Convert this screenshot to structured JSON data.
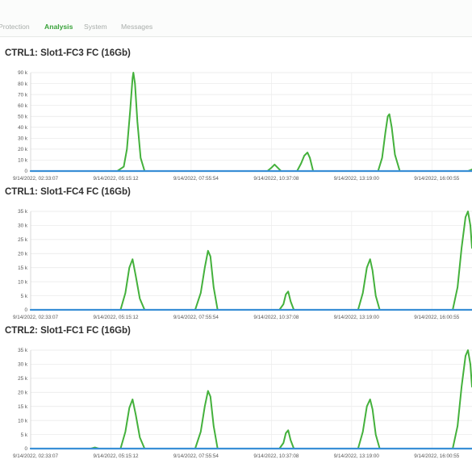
{
  "tabs": [
    {
      "label": "Protection",
      "active": false
    },
    {
      "label": "Analysis",
      "active": true
    },
    {
      "label": "System",
      "active": false
    },
    {
      "label": "Messages",
      "active": false
    }
  ],
  "colors": {
    "accent": "#39a23a",
    "traffic_line": "#44b13c",
    "baseline": "#3a8fd6"
  },
  "chart_data": [
    {
      "type": "line",
      "title": "CTRL1: Slot1-FC3 FC (16Gb)",
      "ylim": [
        0,
        90000
      ],
      "yticks": [
        0,
        10000,
        20000,
        30000,
        40000,
        50000,
        60000,
        70000,
        80000,
        90000
      ],
      "ytick_labels": [
        "0",
        "10 k",
        "20 k",
        "30 k",
        "40 k",
        "50 k",
        "60 k",
        "70 k",
        "80 k",
        "90 k"
      ],
      "xlim": [
        0,
        5.5
      ],
      "x_tick_positions": [
        0,
        1,
        2,
        3,
        4,
        5
      ],
      "x_tick_labels": [
        "9/14/2022, 02:33:07",
        "9/14/2022, 05:15:12",
        "9/14/2022, 07:55:54",
        "9/14/2022, 10:37:08",
        "9/14/2022, 13:19:00",
        "9/14/2022, 16:00:55"
      ],
      "series": [
        {
          "values": [
            [
              0,
              0
            ],
            [
              1.08,
              0
            ],
            [
              1.16,
              4000
            ],
            [
              1.2,
              20000
            ],
            [
              1.24,
              55000
            ],
            [
              1.27,
              85000
            ],
            [
              1.28,
              90000
            ],
            [
              1.3,
              80000
            ],
            [
              1.33,
              45000
            ],
            [
              1.37,
              12000
            ],
            [
              1.42,
              0
            ],
            [
              2.95,
              0
            ],
            [
              3.0,
              3000
            ],
            [
              3.04,
              6000
            ],
            [
              3.08,
              3000
            ],
            [
              3.12,
              0
            ],
            [
              3.32,
              0
            ],
            [
              3.37,
              7000
            ],
            [
              3.41,
              14000
            ],
            [
              3.45,
              17000
            ],
            [
              3.48,
              12000
            ],
            [
              3.52,
              0
            ],
            [
              4.33,
              0
            ],
            [
              4.38,
              12000
            ],
            [
              4.42,
              35000
            ],
            [
              4.45,
              50000
            ],
            [
              4.47,
              52000
            ],
            [
              4.5,
              40000
            ],
            [
              4.54,
              15000
            ],
            [
              4.6,
              0
            ],
            [
              5.45,
              0
            ],
            [
              5.5,
              1500
            ]
          ]
        },
        {
          "values": [
            [
              0,
              0
            ],
            [
              5.5,
              0
            ]
          ]
        }
      ]
    },
    {
      "type": "line",
      "title": "CTRL1: Slot1-FC4 FC (16Gb)",
      "ylim": [
        0,
        35000
      ],
      "yticks": [
        0,
        5000,
        10000,
        15000,
        20000,
        25000,
        30000,
        35000
      ],
      "ytick_labels": [
        "0",
        "5 k",
        "10 k",
        "15 k",
        "20 k",
        "25 k",
        "30 k",
        "35 k"
      ],
      "xlim": [
        0,
        5.5
      ],
      "x_tick_positions": [
        0,
        1,
        2,
        3,
        4,
        5
      ],
      "x_tick_labels": [
        "9/14/2022, 02:33:07",
        "9/14/2022, 05:15:12",
        "9/14/2022, 07:55:54",
        "9/14/2022, 10:37:08",
        "9/14/2022, 13:19:00",
        "9/14/2022, 16:00:55"
      ],
      "series": [
        {
          "values": [
            [
              0,
              0
            ],
            [
              1.12,
              0
            ],
            [
              1.18,
              6000
            ],
            [
              1.23,
              15000
            ],
            [
              1.27,
              18000
            ],
            [
              1.31,
              12000
            ],
            [
              1.36,
              4000
            ],
            [
              1.42,
              0
            ],
            [
              2.05,
              0
            ],
            [
              2.12,
              6000
            ],
            [
              2.17,
              15000
            ],
            [
              2.21,
              21000
            ],
            [
              2.24,
              19000
            ],
            [
              2.28,
              8000
            ],
            [
              2.33,
              0
            ],
            [
              3.1,
              0
            ],
            [
              3.15,
              2000
            ],
            [
              3.18,
              5500
            ],
            [
              3.21,
              6500
            ],
            [
              3.24,
              3000
            ],
            [
              3.28,
              0
            ],
            [
              4.08,
              0
            ],
            [
              4.14,
              6000
            ],
            [
              4.19,
              15000
            ],
            [
              4.23,
              18000
            ],
            [
              4.26,
              14000
            ],
            [
              4.3,
              5000
            ],
            [
              4.35,
              0
            ],
            [
              5.26,
              0
            ],
            [
              5.32,
              8000
            ],
            [
              5.37,
              22000
            ],
            [
              5.42,
              33000
            ],
            [
              5.45,
              35000
            ],
            [
              5.48,
              30000
            ],
            [
              5.5,
              22000
            ]
          ]
        },
        {
          "values": [
            [
              0,
              0
            ],
            [
              5.5,
              0
            ]
          ]
        }
      ]
    },
    {
      "type": "line",
      "title": "CTRL2: Slot1-FC1 FC (16Gb)",
      "ylim": [
        0,
        35000
      ],
      "yticks": [
        0,
        5000,
        10000,
        15000,
        20000,
        25000,
        30000,
        35000
      ],
      "ytick_labels": [
        "0",
        "5 k",
        "10 k",
        "15 k",
        "20 k",
        "25 k",
        "30 k",
        "35 k"
      ],
      "xlim": [
        0,
        5.5
      ],
      "x_tick_positions": [
        0,
        1,
        2,
        3,
        4,
        5
      ],
      "x_tick_labels": [
        "9/14/2022, 02:33:07",
        "9/14/2022, 05:15:12",
        "9/14/2022, 07:55:54",
        "9/14/2022, 10:37:08",
        "9/14/2022, 13:19:00",
        "9/14/2022, 16:00:55"
      ],
      "series": [
        {
          "values": [
            [
              0,
              0
            ],
            [
              0.75,
              0
            ],
            [
              0.8,
              400
            ],
            [
              0.85,
              0
            ],
            [
              1.12,
              0
            ],
            [
              1.18,
              6000
            ],
            [
              1.23,
              14500
            ],
            [
              1.27,
              17500
            ],
            [
              1.31,
              12000
            ],
            [
              1.36,
              4000
            ],
            [
              1.42,
              0
            ],
            [
              2.05,
              0
            ],
            [
              2.12,
              6000
            ],
            [
              2.17,
              15000
            ],
            [
              2.21,
              20500
            ],
            [
              2.24,
              18500
            ],
            [
              2.28,
              8000
            ],
            [
              2.33,
              0
            ],
            [
              3.1,
              0
            ],
            [
              3.15,
              2000
            ],
            [
              3.18,
              5500
            ],
            [
              3.21,
              6500
            ],
            [
              3.24,
              3000
            ],
            [
              3.28,
              0
            ],
            [
              4.08,
              0
            ],
            [
              4.14,
              6000
            ],
            [
              4.19,
              15000
            ],
            [
              4.23,
              17500
            ],
            [
              4.26,
              14000
            ],
            [
              4.3,
              5000
            ],
            [
              4.35,
              0
            ],
            [
              5.26,
              0
            ],
            [
              5.32,
              8000
            ],
            [
              5.37,
              22000
            ],
            [
              5.42,
              33000
            ],
            [
              5.45,
              35000
            ],
            [
              5.48,
              30000
            ],
            [
              5.5,
              22000
            ]
          ]
        },
        {
          "values": [
            [
              0,
              0
            ],
            [
              5.5,
              0
            ]
          ]
        }
      ]
    }
  ]
}
